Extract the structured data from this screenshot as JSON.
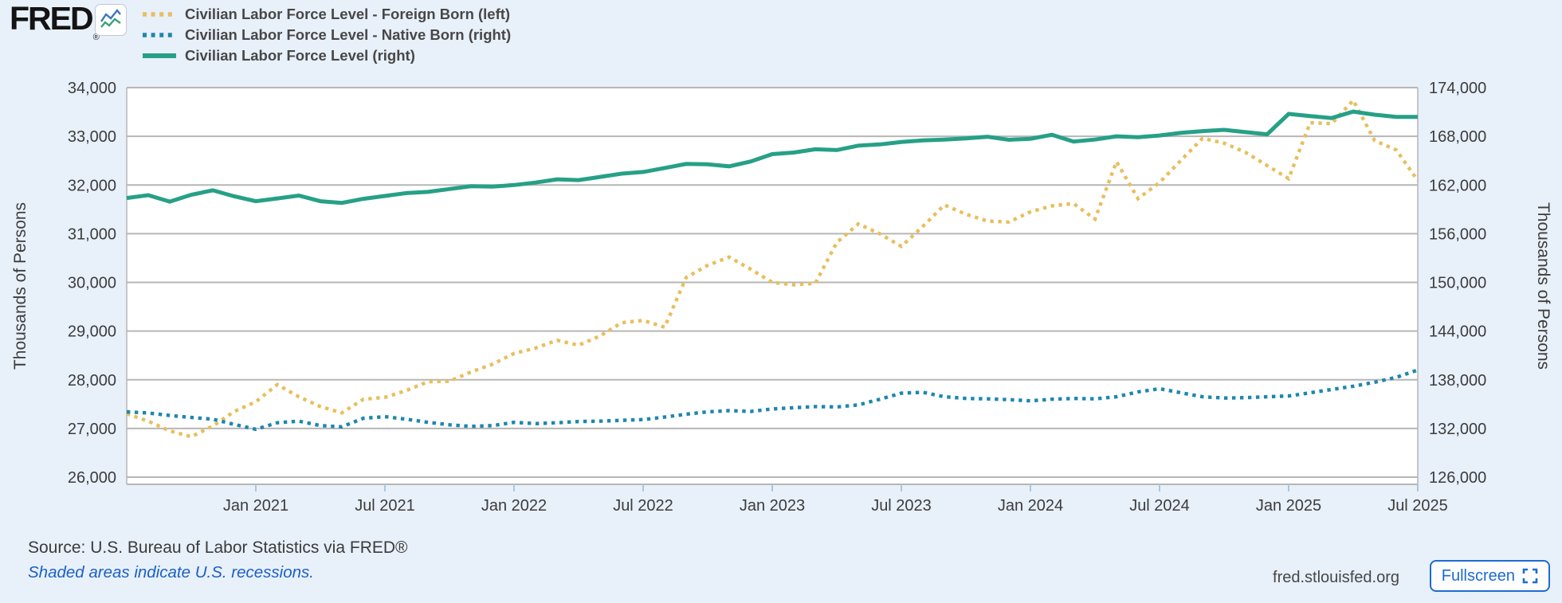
{
  "page_bg": "#e8f0fa",
  "header": {
    "logo_text": "FRED",
    "registered_mark": "®",
    "logo_icon": "line-chart-icon",
    "legend": [
      {
        "label": "Civilian Labor Force Level - Foreign Born (left)",
        "color": "#e7bf5e",
        "line_style": "dotted"
      },
      {
        "label": "Civilian Labor Force Level - Native Born (right)",
        "color": "#1e87ad",
        "line_style": "dotted"
      },
      {
        "label": "Civilian Labor Force Level (right)",
        "color": "#26a087",
        "line_style": "solid"
      }
    ]
  },
  "chart_data": {
    "type": "line",
    "plot_bg": "#ffffff",
    "grid": true,
    "grid_color": "#b6b6b6",
    "tick_color": "#aec6db",
    "label_color": "#3c3c3c",
    "x": [
      "2020-07",
      "2020-08",
      "2020-09",
      "2020-10",
      "2020-11",
      "2020-12",
      "2021-01",
      "2021-02",
      "2021-03",
      "2021-04",
      "2021-05",
      "2021-06",
      "2021-07",
      "2021-08",
      "2021-09",
      "2021-10",
      "2021-11",
      "2021-12",
      "2022-01",
      "2022-02",
      "2022-03",
      "2022-04",
      "2022-05",
      "2022-06",
      "2022-07",
      "2022-08",
      "2022-09",
      "2022-10",
      "2022-11",
      "2022-12",
      "2023-01",
      "2023-02",
      "2023-03",
      "2023-04",
      "2023-05",
      "2023-06",
      "2023-07",
      "2023-08",
      "2023-09",
      "2023-10",
      "2023-11",
      "2023-12",
      "2024-01",
      "2024-02",
      "2024-03",
      "2024-04",
      "2024-05",
      "2024-06",
      "2024-07",
      "2024-08",
      "2024-09",
      "2024-10",
      "2024-11",
      "2024-12",
      "2025-01",
      "2025-02",
      "2025-03",
      "2025-04",
      "2025-05",
      "2025-06",
      "2025-07"
    ],
    "series": [
      {
        "name": "Civilian Labor Force Level - Foreign Born",
        "axis": "left",
        "style": "dotted",
        "color": "#e7bf5e",
        "values": [
          27300,
          27150,
          26950,
          26830,
          27050,
          27350,
          27550,
          27900,
          27650,
          27450,
          27320,
          27600,
          27640,
          27780,
          27960,
          27970,
          28160,
          28320,
          28540,
          28650,
          28810,
          28710,
          28900,
          29170,
          29220,
          29080,
          30100,
          30350,
          30520,
          30270,
          30000,
          29950,
          29980,
          30820,
          31200,
          31000,
          30740,
          31150,
          31590,
          31400,
          31260,
          31240,
          31450,
          31570,
          31620,
          31300,
          32480,
          31720,
          32050,
          32510,
          32960,
          32860,
          32670,
          32400,
          32130,
          33280,
          33260,
          33740,
          32910,
          32720,
          32090
        ]
      },
      {
        "name": "Civilian Labor Force Level - Native Born",
        "axis": "right",
        "style": "dotted",
        "color": "#1e87ad",
        "values": [
          134050,
          133900,
          133600,
          133350,
          133150,
          132500,
          131900,
          132700,
          132900,
          132350,
          132200,
          133250,
          133450,
          133150,
          132750,
          132450,
          132250,
          132350,
          132750,
          132600,
          132700,
          132850,
          132900,
          133000,
          133100,
          133400,
          133750,
          134050,
          134200,
          134100,
          134400,
          134550,
          134700,
          134650,
          134900,
          135600,
          136350,
          136450,
          135900,
          135700,
          135650,
          135550,
          135400,
          135600,
          135700,
          135650,
          135900,
          136500,
          136900,
          136400,
          135900,
          135750,
          135800,
          135900,
          136000,
          136400,
          136800,
          137200,
          137700,
          138300,
          139200
        ]
      },
      {
        "name": "Civilian Labor Force Level",
        "axis": "right",
        "style": "solid",
        "color": "#26a087",
        "values": [
          160400,
          160750,
          159950,
          160800,
          161350,
          160600,
          160000,
          160350,
          160700,
          160000,
          159800,
          160300,
          160650,
          161000,
          161150,
          161500,
          161850,
          161800,
          162000,
          162300,
          162700,
          162600,
          163000,
          163400,
          163600,
          164100,
          164600,
          164550,
          164300,
          164900,
          165800,
          166000,
          166400,
          166300,
          166850,
          167000,
          167300,
          167500,
          167600,
          167750,
          167940,
          167570,
          167700,
          168190,
          167350,
          167600,
          168000,
          167890,
          168100,
          168420,
          168640,
          168800,
          168510,
          168250,
          170760,
          170500,
          170250,
          171050,
          170660,
          170400,
          170400
        ]
      }
    ],
    "left_axis": {
      "title": "Thousands of Persons",
      "min": 26000,
      "max": 34000,
      "tick_step": 1000,
      "tick_labels": [
        "34,000",
        "33,000",
        "32,000",
        "31,000",
        "30,000",
        "29,000",
        "28,000",
        "27,000",
        "26,000"
      ]
    },
    "right_axis": {
      "title": "Thousands of Persons",
      "min": 126000,
      "max": 174000,
      "tick_step": 6000,
      "tick_labels": [
        "174,000",
        "168,000",
        "162,000",
        "156,000",
        "150,000",
        "144,000",
        "138,000",
        "132,000",
        "126,000"
      ]
    },
    "x_axis": {
      "tick_labels": [
        "Jan 2021",
        "Jul 2021",
        "Jan 2022",
        "Jul 2022",
        "Jan 2023",
        "Jul 2023",
        "Jan 2024",
        "Jul 2024",
        "Jan 2025",
        "Jul 2025"
      ],
      "first_tick_month_index": 6,
      "tick_every_months": 6
    }
  },
  "footer": {
    "source": "Source: U.S. Bureau of Labor Statistics via FRED®",
    "note": "Shaded areas indicate U.S. recessions.",
    "site": "fred.stlouisfed.org",
    "fullscreen_label": "Fullscreen"
  }
}
